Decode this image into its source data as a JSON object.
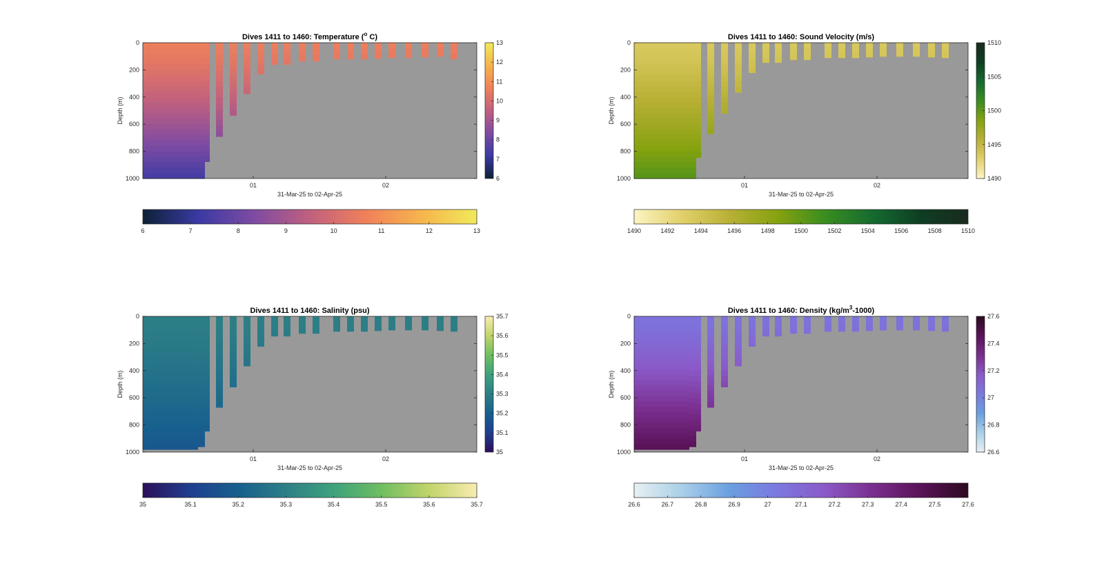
{
  "background_color": "#ffffff",
  "missing_color": "#999999",
  "chart_data": [
    {
      "type": "heatmap",
      "title_main": "Dives 1411 to 1460: Temperature (",
      "title_sup": "o",
      "title_end": " C)",
      "xlabel": "31-Mar-25 to 02-Apr-25",
      "ylabel": "Depth (m)",
      "ylim": [
        0,
        1000
      ],
      "yticks": [
        "0",
        "200",
        "400",
        "600",
        "800",
        "1000"
      ],
      "xticks": [
        "01",
        "02"
      ],
      "clim": [
        6,
        13
      ],
      "cbar_ticks": [
        "6",
        "7",
        "8",
        "9",
        "10",
        "11",
        "12",
        "13"
      ],
      "colormap": [
        "#0d2137",
        "#3a3aa3",
        "#7e4ba3",
        "#c0607e",
        "#f0805a",
        "#f6b44d",
        "#f0ea5a"
      ],
      "surface_value": 10.6,
      "deep_value": 7.3,
      "dives": [
        {
          "depth": 1000
        },
        {
          "depth": 1000
        },
        {
          "depth": 1000
        },
        {
          "depth": 1000
        },
        {
          "depth": 1000
        },
        {
          "depth": 1000
        },
        {
          "depth": 1000
        },
        {
          "depth": 1000
        },
        {
          "depth": 1000
        },
        {
          "depth": 875
        },
        {
          "depth": 690
        },
        {
          "depth": 535
        },
        {
          "depth": 375
        },
        {
          "depth": 230
        },
        {
          "depth": 160
        },
        {
          "depth": 160
        },
        {
          "depth": 135
        },
        {
          "depth": 135
        },
        {
          "depth": 120
        },
        {
          "depth": 120
        },
        {
          "depth": 120
        },
        {
          "depth": 115
        },
        {
          "depth": 110
        },
        {
          "depth": 110
        },
        {
          "depth": 105
        },
        {
          "depth": 100
        },
        {
          "depth": 120
        }
      ]
    },
    {
      "type": "heatmap",
      "title_main": "Dives 1411 to 1460: Sound Velocity (m/s)",
      "title_sup": "",
      "title_end": "",
      "xlabel": "31-Mar-25 to 02-Apr-25",
      "ylabel": "Depth (m)",
      "ylim": [
        0,
        1000
      ],
      "yticks": [
        "0",
        "200",
        "400",
        "600",
        "800",
        "1000"
      ],
      "xticks": [
        "01",
        "02"
      ],
      "clim": [
        1490,
        1510
      ],
      "cbar_ticks": [
        "1490",
        "1492",
        "1494",
        "1496",
        "1498",
        "1500",
        "1502",
        "1504",
        "1506",
        "1508",
        "1510"
      ],
      "right_cbar_ticks": [
        "1490",
        "1495",
        "1500",
        "1505",
        "1510"
      ],
      "colormap": [
        "#fbf5c3",
        "#e2d06a",
        "#b8b035",
        "#86a20f",
        "#3a8d1f",
        "#146b30",
        "#0e3e22",
        "#1a2a1e"
      ],
      "surface_value": 1493.5,
      "deep_value": 1500.5,
      "dives": [
        {
          "depth": 1000
        },
        {
          "depth": 1000
        },
        {
          "depth": 1000
        },
        {
          "depth": 1000
        },
        {
          "depth": 1000
        },
        {
          "depth": 1000
        },
        {
          "depth": 1000
        },
        {
          "depth": 1000
        },
        {
          "depth": 1000
        },
        {
          "depth": 845
        },
        {
          "depth": 670
        },
        {
          "depth": 520
        },
        {
          "depth": 365
        },
        {
          "depth": 220
        },
        {
          "depth": 145
        },
        {
          "depth": 145
        },
        {
          "depth": 125
        },
        {
          "depth": 125
        },
        {
          "depth": 110
        },
        {
          "depth": 110
        },
        {
          "depth": 110
        },
        {
          "depth": 105
        },
        {
          "depth": 100
        },
        {
          "depth": 100
        },
        {
          "depth": 100
        },
        {
          "depth": 105
        },
        {
          "depth": 110
        }
      ]
    },
    {
      "type": "heatmap",
      "title_main": "Dives 1411 to 1460: Salinity (psu)",
      "title_sup": "",
      "title_end": "",
      "xlabel": "31-Mar-25 to 02-Apr-25",
      "ylabel": "Depth (m)",
      "ylim": [
        0,
        1000
      ],
      "yticks": [
        "0",
        "200",
        "400",
        "600",
        "800",
        "1000"
      ],
      "xticks": [
        "01",
        "02"
      ],
      "clim": [
        35,
        35.7
      ],
      "cbar_ticks": [
        "35",
        "35.1",
        "35.2",
        "35.3",
        "35.4",
        "35.5",
        "35.6",
        "35.7"
      ],
      "colormap": [
        "#2c0f5a",
        "#1f3f8f",
        "#17608e",
        "#2d7f86",
        "#3da27c",
        "#6fbe60",
        "#c2d46b",
        "#f8ecb0"
      ],
      "surface_value": 35.3,
      "deep_value": 35.17,
      "dives": [
        {
          "depth": 980
        },
        {
          "depth": 980
        },
        {
          "depth": 980
        },
        {
          "depth": 980
        },
        {
          "depth": 980
        },
        {
          "depth": 980
        },
        {
          "depth": 980
        },
        {
          "depth": 980
        },
        {
          "depth": 960
        },
        {
          "depth": 845
        },
        {
          "depth": 670
        },
        {
          "depth": 520
        },
        {
          "depth": 365
        },
        {
          "depth": 220
        },
        {
          "depth": 145
        },
        {
          "depth": 145
        },
        {
          "depth": 125
        },
        {
          "depth": 125
        },
        {
          "depth": 110
        },
        {
          "depth": 110
        },
        {
          "depth": 110
        },
        {
          "depth": 105
        },
        {
          "depth": 100
        },
        {
          "depth": 100
        },
        {
          "depth": 100
        },
        {
          "depth": 105
        },
        {
          "depth": 110
        }
      ]
    },
    {
      "type": "heatmap",
      "title_main": "Dives 1411 to 1460: Density (kg/m",
      "title_sup": "3",
      "title_end": "-1000)",
      "xlabel": "31-Mar-25 to 02-Apr-25",
      "ylabel": "Depth (m)",
      "ylim": [
        0,
        1000
      ],
      "yticks": [
        "0",
        "200",
        "400",
        "600",
        "800",
        "1000"
      ],
      "xticks": [
        "01",
        "02"
      ],
      "clim": [
        26.6,
        27.6
      ],
      "cbar_ticks": [
        "26.6",
        "26.7",
        "26.8",
        "26.9",
        "27",
        "27.1",
        "27.2",
        "27.3",
        "27.4",
        "27.5",
        "27.6"
      ],
      "right_cbar_ticks": [
        "26.6",
        "26.8",
        "27",
        "27.2",
        "27.4",
        "27.6"
      ],
      "colormap": [
        "#e8f0f2",
        "#a9cfe8",
        "#6a9fe0",
        "#7b78e0",
        "#8a5ac8",
        "#7a2e8e",
        "#5a1258",
        "#2c0a20"
      ],
      "surface_value": 27.05,
      "deep_value": 27.48,
      "dives": [
        {
          "depth": 980
        },
        {
          "depth": 980
        },
        {
          "depth": 980
        },
        {
          "depth": 980
        },
        {
          "depth": 980
        },
        {
          "depth": 980
        },
        {
          "depth": 980
        },
        {
          "depth": 980
        },
        {
          "depth": 960
        },
        {
          "depth": 845
        },
        {
          "depth": 670
        },
        {
          "depth": 520
        },
        {
          "depth": 365
        },
        {
          "depth": 220
        },
        {
          "depth": 145
        },
        {
          "depth": 145
        },
        {
          "depth": 125
        },
        {
          "depth": 125
        },
        {
          "depth": 110
        },
        {
          "depth": 110
        },
        {
          "depth": 110
        },
        {
          "depth": 105
        },
        {
          "depth": 100
        },
        {
          "depth": 100
        },
        {
          "depth": 100
        },
        {
          "depth": 105
        },
        {
          "depth": 110
        }
      ]
    }
  ]
}
